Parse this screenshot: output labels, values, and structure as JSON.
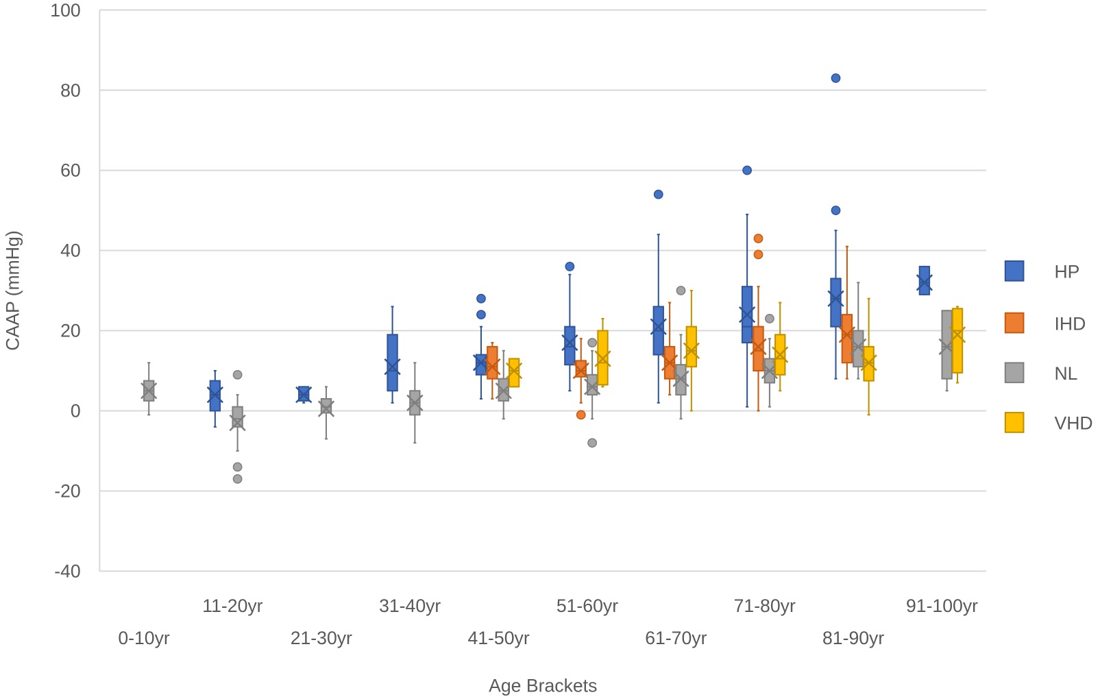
{
  "chart_data": {
    "type": "boxplot",
    "title": "",
    "xlabel": "Age Brackets",
    "ylabel": "CAAP (mmHg)",
    "ylim": [
      -40,
      100
    ],
    "yticks": [
      -40,
      -20,
      0,
      20,
      40,
      60,
      80,
      100
    ],
    "grid": true,
    "legend_position": "right",
    "categories": [
      "0-10yr",
      "11-20yr",
      "21-30yr",
      "31-40yr",
      "41-50yr",
      "51-60yr",
      "61-70yr",
      "71-80yr",
      "81-90yr",
      "91-100yr"
    ],
    "series": [
      {
        "name": "HP",
        "color": "#4472C4",
        "stroke": "#2F5597",
        "boxes": [
          null,
          {
            "min": -4,
            "q1": 0,
            "median": 4,
            "q3": 7.5,
            "max": 10,
            "mean": 4,
            "outliers": []
          },
          {
            "min": 2,
            "q1": 2.5,
            "median": 4,
            "q3": 6,
            "max": 6,
            "mean": 4,
            "outliers": []
          },
          {
            "min": 2,
            "q1": 5,
            "median": 10,
            "q3": 19,
            "max": 26,
            "mean": 11,
            "outliers": []
          },
          {
            "min": 3,
            "q1": 9,
            "median": 12,
            "q3": 14,
            "max": 21,
            "mean": 12,
            "outliers": [
              28,
              24
            ]
          },
          {
            "min": 5,
            "q1": 11.5,
            "median": 16,
            "q3": 21,
            "max": 34,
            "mean": 17,
            "outliers": [
              36
            ]
          },
          {
            "min": 2,
            "q1": 14,
            "median": 20,
            "q3": 26,
            "max": 44,
            "mean": 21,
            "outliers": [
              54
            ]
          },
          {
            "min": 1,
            "q1": 17,
            "median": 21,
            "q3": 31,
            "max": 49,
            "mean": 24,
            "outliers": [
              60
            ]
          },
          {
            "min": 8,
            "q1": 21,
            "median": 28,
            "q3": 33,
            "max": 45,
            "mean": 28,
            "outliers": [
              83,
              50
            ]
          },
          {
            "min": 29,
            "q1": 29,
            "median": 32,
            "q3": 36,
            "max": 36,
            "mean": 32,
            "outliers": []
          }
        ]
      },
      {
        "name": "IHD",
        "color": "#ED7D31",
        "stroke": "#C55A11",
        "boxes": [
          null,
          null,
          null,
          null,
          {
            "min": 3,
            "q1": 8,
            "median": 11,
            "q3": 16,
            "max": 17,
            "mean": 11,
            "outliers": []
          },
          {
            "min": 2,
            "q1": 8.5,
            "median": 10,
            "q3": 12.5,
            "max": 18,
            "mean": 10,
            "outliers": [
              -1
            ]
          },
          {
            "min": 4,
            "q1": 8,
            "median": 12,
            "q3": 16,
            "max": 27,
            "mean": 12,
            "outliers": []
          },
          {
            "min": 0,
            "q1": 10,
            "median": 15,
            "q3": 21,
            "max": 31,
            "mean": 16,
            "outliers": [
              43,
              39
            ]
          },
          {
            "min": 8,
            "q1": 12,
            "median": 19,
            "q3": 24,
            "max": 41,
            "mean": 19,
            "outliers": []
          },
          null
        ]
      },
      {
        "name": "NL",
        "color": "#A5A5A5",
        "stroke": "#7F7F7F",
        "boxes": [
          {
            "min": -1,
            "q1": 2.5,
            "median": 5,
            "q3": 7.5,
            "max": 12,
            "mean": 5,
            "outliers": []
          },
          {
            "min": -10,
            "q1": -4,
            "median": -2,
            "q3": 1,
            "max": 4,
            "mean": -3,
            "outliers": [
              9,
              -14,
              -17
            ]
          },
          {
            "min": -7,
            "q1": -0.5,
            "median": 1,
            "q3": 3,
            "max": 6,
            "mean": 0.5,
            "outliers": []
          },
          {
            "min": -8,
            "q1": -1,
            "median": 2,
            "q3": 5,
            "max": 12,
            "mean": 2,
            "outliers": []
          },
          {
            "min": -2,
            "q1": 2.5,
            "median": 5,
            "q3": 8,
            "max": 15,
            "mean": 5,
            "outliers": []
          },
          {
            "min": -2,
            "q1": 4,
            "median": 6,
            "q3": 9,
            "max": 15,
            "mean": 6,
            "outliers": [
              17,
              -8
            ]
          },
          {
            "min": -2,
            "q1": 4,
            "median": 8,
            "q3": 11.5,
            "max": 19,
            "mean": 8,
            "outliers": [
              30
            ]
          },
          {
            "min": 1,
            "q1": 7,
            "median": 10,
            "q3": 13,
            "max": 18,
            "mean": 10,
            "outliers": [
              23
            ]
          },
          {
            "min": 8,
            "q1": 11,
            "median": 16,
            "q3": 20,
            "max": 32,
            "mean": 16,
            "outliers": []
          },
          {
            "min": 5,
            "q1": 8,
            "median": 16,
            "q3": 25,
            "max": 25,
            "mean": 16,
            "outliers": []
          }
        ]
      },
      {
        "name": "VHD",
        "color": "#FFC000",
        "stroke": "#BF9000",
        "boxes": [
          null,
          null,
          null,
          null,
          {
            "min": 6,
            "q1": 6,
            "median": 10,
            "q3": 13,
            "max": 13,
            "mean": 10,
            "outliers": []
          },
          {
            "min": 6,
            "q1": 6.5,
            "median": 12,
            "q3": 20,
            "max": 23,
            "mean": 13,
            "outliers": []
          },
          {
            "min": 0,
            "q1": 11,
            "median": 15,
            "q3": 21,
            "max": 30,
            "mean": 15,
            "outliers": []
          },
          {
            "min": 5,
            "q1": 9,
            "median": 13,
            "q3": 19,
            "max": 27,
            "mean": 14,
            "outliers": []
          },
          {
            "min": -1,
            "q1": 7.5,
            "median": 12,
            "q3": 16,
            "max": 28,
            "mean": 12,
            "outliers": []
          },
          {
            "min": 7,
            "q1": 9.5,
            "median": 20,
            "q3": 25.5,
            "max": 26,
            "mean": 19,
            "outliers": []
          }
        ]
      }
    ]
  }
}
